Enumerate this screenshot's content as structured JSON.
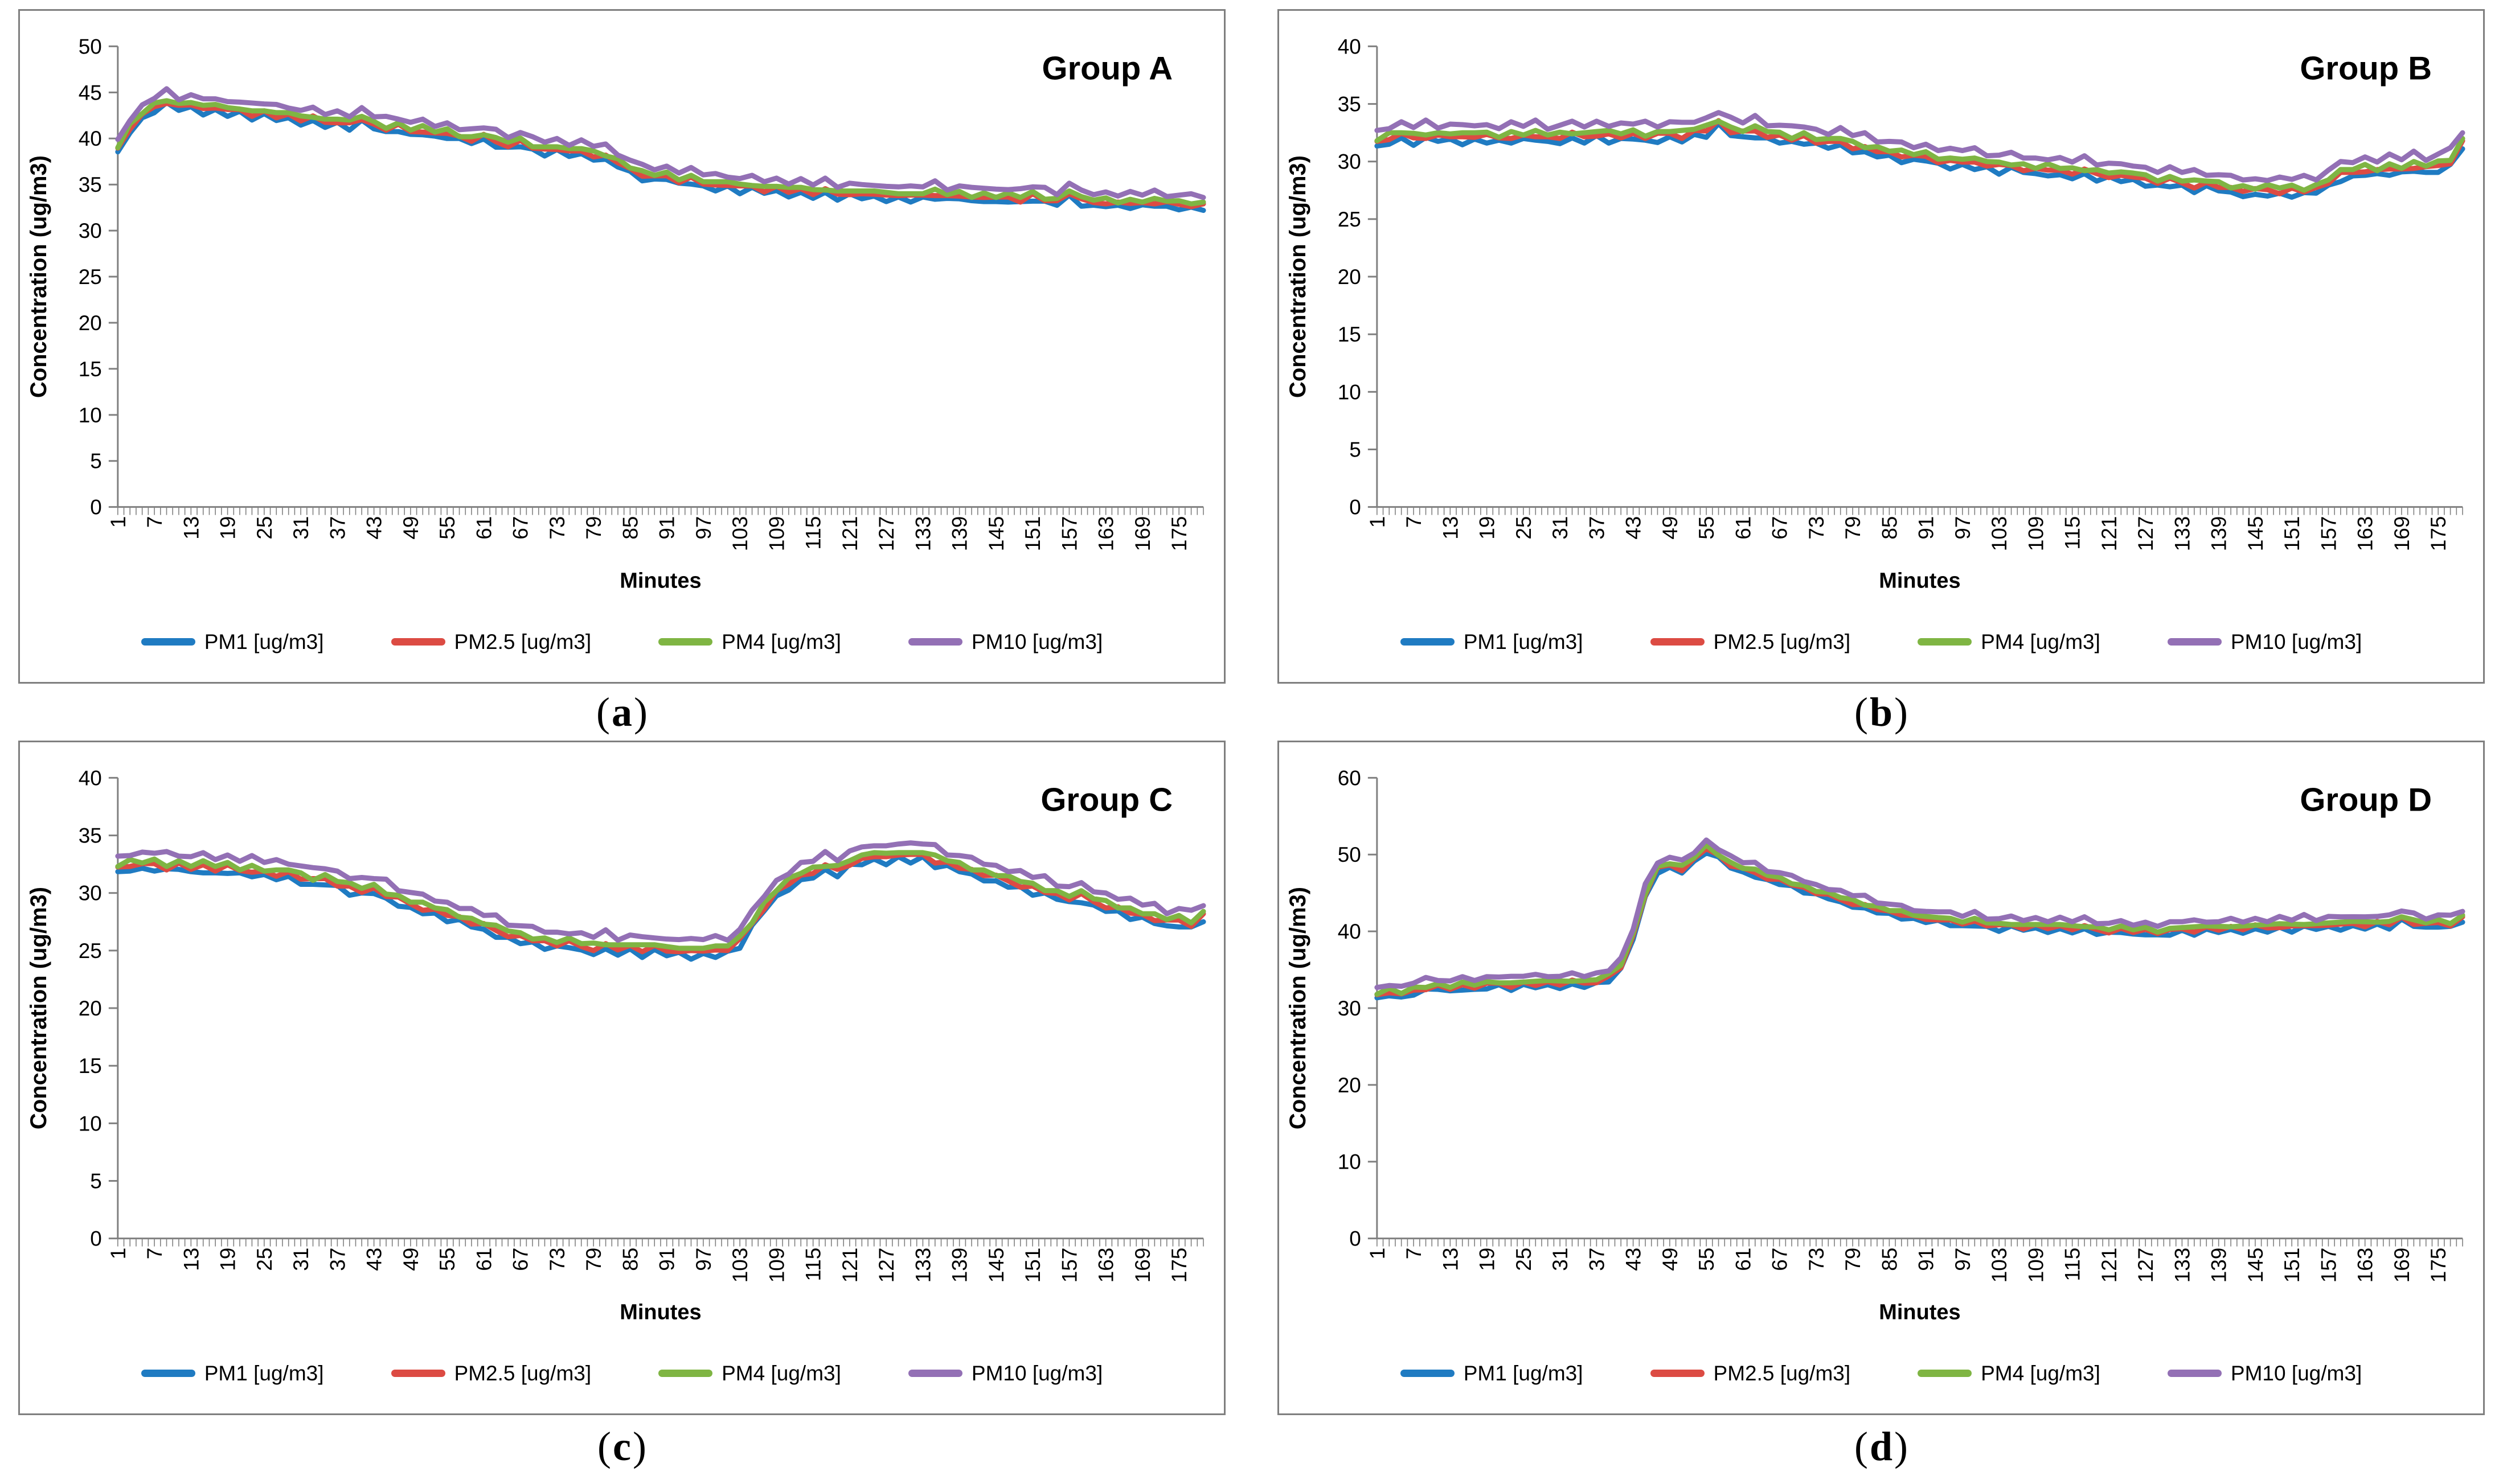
{
  "figure": {
    "background": "#ffffff",
    "panel_border": "#7f7f7f",
    "axis_line": "#808080",
    "text_color": "#000000"
  },
  "colors": {
    "pm1": "#1f7bc2",
    "pm25": "#dc4b43",
    "pm4": "#7fb543",
    "pm10": "#9370b5"
  },
  "chart_data": {
    "type": "line",
    "x_label": "Minutes",
    "y_label": "Concentration (ug/m3)",
    "legend_position": "bottom",
    "grid": false,
    "x": {
      "start": 1,
      "step": 2,
      "max": 179,
      "tick_labels": [
        1,
        7,
        13,
        19,
        25,
        31,
        37,
        43,
        49,
        55,
        61,
        67,
        73,
        79,
        85,
        91,
        97,
        103,
        109,
        115,
        121,
        127,
        133,
        139,
        145,
        151,
        157,
        163,
        169,
        175
      ]
    },
    "series_defs": [
      {
        "name": "PM1 [ug/m3]",
        "color_key": "pm1",
        "offset": -0.45,
        "jitter": [
          0,
          -0.25,
          0.1,
          -0.35,
          0.15,
          -0.1,
          0,
          -0.3
        ]
      },
      {
        "name": "PM2.5 [ug/m3]",
        "color_key": "pm25",
        "offset": -0.15,
        "jitter": [
          0.1,
          -0.15,
          0.2,
          0,
          -0.25,
          0.15,
          -0.1
        ]
      },
      {
        "name": "PM4 [ug/m3]",
        "color_key": "pm4",
        "offset": 0.1,
        "jitter": [
          -0.1,
          0.2,
          0,
          0.15,
          -0.2,
          0.1
        ]
      },
      {
        "name": "PM10 [ug/m3]",
        "color_key": "pm10",
        "offset": 0.75,
        "jitter": [
          0.15,
          -0.1,
          0.3,
          0,
          0.45,
          -0.15,
          0.1,
          0.25,
          -0.05
        ]
      }
    ],
    "charts": [
      {
        "id": "a",
        "title": "Group A",
        "cap_open": "(",
        "cap_letter": "a",
        "cap_close": ")",
        "ylim": [
          0,
          50
        ],
        "yticks": [
          0,
          5,
          10,
          15,
          20,
          25,
          30,
          35,
          40,
          45,
          50
        ],
        "mid": [
          39.0,
          41.3,
          42.6,
          43.6,
          44.2,
          43.6,
          43.9,
          43.3,
          43.6,
          43.1,
          43.3,
          42.8,
          43.0,
          42.5,
          42.7,
          42.2,
          42.4,
          41.9,
          42.1,
          41.7,
          42.3,
          41.6,
          41.2,
          41.5,
          40.9,
          41.1,
          40.6,
          40.8,
          40.3,
          40.0,
          40.4,
          39.8,
          39.5,
          39.8,
          39.2,
          38.9,
          39.1,
          38.6,
          38.8,
          38.4,
          38.2,
          37.6,
          36.8,
          36.2,
          35.9,
          36.1,
          35.6,
          35.8,
          35.3,
          35.0,
          35.2,
          34.8,
          35.0,
          34.6,
          34.8,
          34.4,
          34.6,
          34.2,
          34.5,
          34.1,
          34.3,
          34.0,
          34.2,
          33.9,
          34.1,
          33.8,
          34.0,
          34.2,
          33.8,
          34.0,
          33.7,
          33.9,
          33.6,
          33.8,
          33.5,
          34.0,
          33.5,
          33.3,
          34.3,
          33.4,
          33.2,
          33.3,
          33.1,
          33.2,
          33.1,
          33.2,
          33.1,
          33.0,
          33.0,
          32.9
        ]
      },
      {
        "id": "b",
        "title": "Group B",
        "cap_open": "(",
        "cap_letter": "b",
        "cap_close": ")",
        "ylim": [
          0,
          40
        ],
        "yticks": [
          0,
          5,
          10,
          15,
          20,
          25,
          30,
          35,
          40
        ],
        "mid": [
          31.8,
          32.2,
          32.4,
          32.2,
          32.4,
          32.3,
          32.4,
          32.2,
          32.4,
          32.3,
          32.2,
          32.4,
          32.3,
          32.4,
          32.2,
          32.3,
          32.5,
          32.3,
          32.6,
          32.4,
          32.3,
          32.5,
          32.3,
          32.4,
          32.6,
          32.4,
          32.7,
          32.9,
          33.6,
          32.8,
          32.6,
          32.8,
          32.5,
          32.3,
          32.1,
          32.3,
          31.9,
          31.7,
          31.9,
          31.5,
          31.3,
          31.1,
          30.9,
          30.7,
          30.5,
          30.6,
          30.3,
          30.1,
          30.2,
          30.0,
          29.9,
          29.7,
          29.8,
          29.6,
          29.4,
          29.5,
          29.3,
          29.2,
          29.3,
          29.1,
          29.0,
          28.8,
          28.9,
          28.6,
          28.4,
          28.5,
          28.3,
          28.1,
          28.2,
          28.0,
          27.8,
          27.7,
          27.6,
          27.7,
          27.6,
          27.7,
          27.6,
          27.8,
          28.4,
          29.0,
          29.2,
          29.5,
          29.3,
          29.6,
          29.4,
          29.7,
          29.5,
          29.8,
          30.2,
          31.8
        ]
      },
      {
        "id": "c",
        "title": "Group C",
        "cap_open": "(",
        "cap_letter": "c",
        "cap_close": ")",
        "ylim": [
          0,
          40
        ],
        "yticks": [
          0,
          5,
          10,
          15,
          20,
          25,
          30,
          35,
          40
        ],
        "mid": [
          32.3,
          32.6,
          32.5,
          32.7,
          32.4,
          32.6,
          32.3,
          32.5,
          32.2,
          32.4,
          32.1,
          32.2,
          31.9,
          31.7,
          31.9,
          31.5,
          31.2,
          31.4,
          31.0,
          30.6,
          30.3,
          30.5,
          30.0,
          29.6,
          29.2,
          28.9,
          28.6,
          28.3,
          28.0,
          27.6,
          27.3,
          26.9,
          26.6,
          26.3,
          26.1,
          25.9,
          25.7,
          25.8,
          25.5,
          25.4,
          25.6,
          25.3,
          25.5,
          25.2,
          25.4,
          25.1,
          25.3,
          25.0,
          25.2,
          25.1,
          25.3,
          26.0,
          27.5,
          29.0,
          30.2,
          31.0,
          31.6,
          32.0,
          32.4,
          32.2,
          32.8,
          33.0,
          33.4,
          33.2,
          33.6,
          33.3,
          33.5,
          33.0,
          32.7,
          32.4,
          32.1,
          31.8,
          31.5,
          31.2,
          30.9,
          30.6,
          30.3,
          30.0,
          29.7,
          29.9,
          29.4,
          29.1,
          28.8,
          28.5,
          28.2,
          27.9,
          27.6,
          27.8,
          27.5,
          28.2
        ]
      },
      {
        "id": "d",
        "title": "Group D",
        "cap_open": "(",
        "cap_letter": "d",
        "cap_close": ")",
        "ylim": [
          0,
          60
        ],
        "yticks": [
          0,
          10,
          20,
          30,
          40,
          50,
          60
        ],
        "mid": [
          31.8,
          32.3,
          31.8,
          32.5,
          32.8,
          33.0,
          32.7,
          33.1,
          32.9,
          33.2,
          33.4,
          33.1,
          33.4,
          33.2,
          33.5,
          33.3,
          33.6,
          33.4,
          33.7,
          34.2,
          35.5,
          39.5,
          45.0,
          48.3,
          48.8,
          48.3,
          49.5,
          51.0,
          50.0,
          48.8,
          48.2,
          47.8,
          47.2,
          46.8,
          46.3,
          45.8,
          45.2,
          44.8,
          44.3,
          43.9,
          43.5,
          43.1,
          42.7,
          42.4,
          42.0,
          41.7,
          41.9,
          41.5,
          41.2,
          41.4,
          41.0,
          40.8,
          41.0,
          40.7,
          40.9,
          40.6,
          40.8,
          40.5,
          40.7,
          40.4,
          40.2,
          40.4,
          40.1,
          40.3,
          40.0,
          40.2,
          40.5,
          40.3,
          40.6,
          40.4,
          40.7,
          40.5,
          40.8,
          40.6,
          40.9,
          40.7,
          41.0,
          40.8,
          41.1,
          40.9,
          41.2,
          41.0,
          41.3,
          41.1,
          41.9,
          41.2,
          41.0,
          41.3,
          41.1,
          41.9
        ]
      }
    ]
  }
}
